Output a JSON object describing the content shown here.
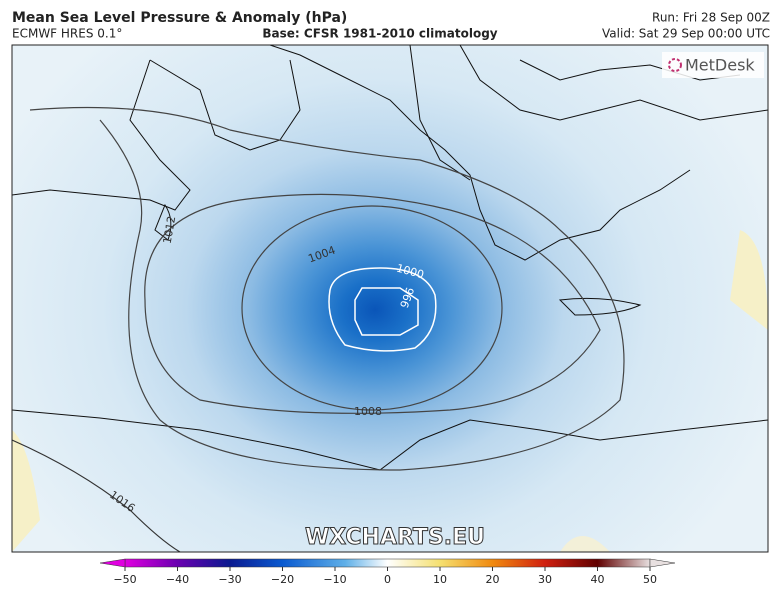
{
  "header": {
    "title": "Mean Sea Level Pressure & Anomaly (hPa)",
    "model": "ECMWF HRES 0.1°",
    "base": "Base: CFSR 1981-2010 climatology",
    "run": "Run: Fri 28 Sep 00Z",
    "valid": "Valid: Sat 29 Sep 00:00 UTC"
  },
  "map": {
    "logo": "MetDesk",
    "watermark": "WXCHARTS.EU",
    "contour_labels": [
      1012,
      1004,
      1000,
      996,
      1008,
      1016
    ]
  },
  "colorbar": {
    "lim": [
      -50,
      50
    ],
    "ticks": [
      {
        "value": -50,
        "label": "−50"
      },
      {
        "value": -40,
        "label": "−40"
      },
      {
        "value": -30,
        "label": "−30"
      },
      {
        "value": -20,
        "label": "−20"
      },
      {
        "value": -10,
        "label": "−10"
      },
      0,
      10,
      20,
      30,
      40,
      50
    ]
  }
}
